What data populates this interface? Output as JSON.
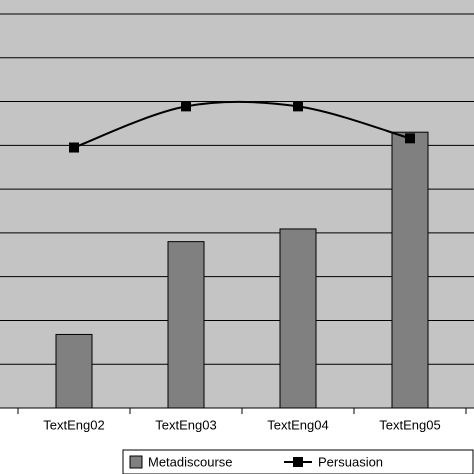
{
  "chart_data": {
    "type": "bar_line",
    "categories": [
      "TextEng02",
      "TextEng03",
      "TextEng04",
      "TextEng05"
    ],
    "series": [
      {
        "name": "Metadiscourse",
        "type": "bar",
        "color": "#808080",
        "values": [
          1.68,
          3.8,
          4.09,
          6.3
        ]
      },
      {
        "name": "Persuasion",
        "type": "line",
        "color": "#000000",
        "values": [
          5.95,
          6.89,
          6.89,
          6.16
        ]
      }
    ],
    "ylim": [
      0,
      9
    ],
    "yticks": [
      1,
      2,
      3,
      4,
      5,
      6,
      7,
      8,
      9
    ],
    "grid": true,
    "legend": "bottom"
  }
}
